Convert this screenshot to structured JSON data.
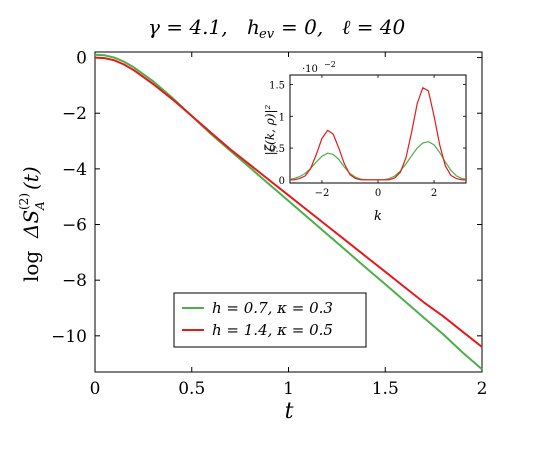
{
  "chart_data": [
    {
      "type": "line",
      "title": "γ = 4.1,    h_ev = 0,    ℓ = 40",
      "title_parts": {
        "gamma": "γ = 4.1,",
        "hev": "= 0,",
        "hev_symbol": "h",
        "hev_sub": "ev",
        "ell": "ℓ = 40"
      },
      "xlabel": "t",
      "ylabel": "log ΔS_A^(2)(t)",
      "ylabel_parts": {
        "log": "log",
        "delta": "ΔS",
        "sup": "(2)",
        "sub": "A",
        "arg": "(t)"
      },
      "xlim": [
        0,
        2
      ],
      "ylim": [
        -11.3,
        0.2
      ],
      "x_ticks": [
        "0",
        "0.5",
        "1",
        "1.5",
        "2"
      ],
      "y_ticks": [
        "0",
        "−2",
        "−4",
        "−6",
        "−8",
        "−10"
      ],
      "grid": false,
      "legend_position": "bottom-center",
      "series": [
        {
          "name": "h = 0.7,  κ = 0.3",
          "color": "#4daf4a",
          "x": [
            0,
            0.05,
            0.1,
            0.15,
            0.2,
            0.3,
            0.4,
            0.5,
            0.6,
            0.7,
            0.8,
            0.9,
            1.0,
            1.1,
            1.2,
            1.3,
            1.4,
            1.5,
            1.6,
            1.7,
            1.8,
            1.9,
            2.0
          ],
          "y": [
            0.1,
            0.08,
            0.0,
            -0.15,
            -0.35,
            -0.85,
            -1.45,
            -2.1,
            -2.75,
            -3.35,
            -3.95,
            -4.55,
            -5.15,
            -5.75,
            -6.35,
            -6.95,
            -7.55,
            -8.15,
            -8.75,
            -9.35,
            -9.95,
            -10.6,
            -11.2
          ]
        },
        {
          "name": "h = 1.4,  κ = 0.5",
          "color": "#e41a1c",
          "x": [
            0,
            0.05,
            0.1,
            0.15,
            0.2,
            0.3,
            0.4,
            0.5,
            0.6,
            0.7,
            0.8,
            0.9,
            1.0,
            1.1,
            1.2,
            1.3,
            1.4,
            1.5,
            1.6,
            1.7,
            1.8,
            1.9,
            2.0
          ],
          "y": [
            0.0,
            -0.02,
            -0.1,
            -0.25,
            -0.45,
            -0.95,
            -1.5,
            -2.1,
            -2.7,
            -3.3,
            -3.85,
            -4.4,
            -4.95,
            -5.5,
            -6.05,
            -6.6,
            -7.15,
            -7.7,
            -8.25,
            -8.8,
            -9.3,
            -9.85,
            -10.4
          ]
        }
      ]
    },
    {
      "type": "line",
      "xlabel": "k",
      "ylabel": "|ζ̃(k, ρ)|²",
      "y_multiplier": "·10",
      "y_multiplier_exp": "−2",
      "xlim": [
        -3.14,
        3.14
      ],
      "ylim": [
        -0.05,
        1.65
      ],
      "x_ticks": [
        "−2",
        "0",
        "2"
      ],
      "y_ticks": [
        "0",
        "0.5",
        "1",
        "1.5"
      ],
      "series": [
        {
          "color": "#4daf4a",
          "x": [
            -3.14,
            -3.0,
            -2.8,
            -2.6,
            -2.4,
            -2.2,
            -2.0,
            -1.8,
            -1.6,
            -1.4,
            -1.2,
            -1.0,
            -0.8,
            -0.6,
            -0.4,
            -0.2,
            0.0,
            0.2,
            0.4,
            0.6,
            0.8,
            1.0,
            1.2,
            1.4,
            1.6,
            1.8,
            2.0,
            2.2,
            2.4,
            2.6,
            2.8,
            3.0,
            3.14
          ],
          "y": [
            0.01,
            0.02,
            0.05,
            0.1,
            0.18,
            0.28,
            0.37,
            0.42,
            0.4,
            0.32,
            0.2,
            0.1,
            0.04,
            0.01,
            0.0,
            0.0,
            0.0,
            0.0,
            0.02,
            0.06,
            0.14,
            0.25,
            0.38,
            0.5,
            0.58,
            0.6,
            0.55,
            0.43,
            0.28,
            0.15,
            0.06,
            0.02,
            0.01
          ]
        },
        {
          "color": "#e41a1c",
          "x": [
            -3.14,
            -3.0,
            -2.8,
            -2.6,
            -2.4,
            -2.2,
            -2.0,
            -1.8,
            -1.6,
            -1.4,
            -1.2,
            -1.0,
            -0.8,
            -0.6,
            -0.4,
            -0.2,
            0.0,
            0.2,
            0.4,
            0.6,
            0.8,
            1.0,
            1.2,
            1.4,
            1.6,
            1.8,
            2.0,
            2.2,
            2.4,
            2.6,
            2.8,
            3.0,
            3.14
          ],
          "y": [
            0.0,
            0.0,
            0.02,
            0.06,
            0.18,
            0.4,
            0.65,
            0.78,
            0.72,
            0.5,
            0.25,
            0.08,
            0.02,
            0.0,
            0.0,
            0.0,
            0.0,
            0.0,
            0.0,
            0.03,
            0.12,
            0.35,
            0.75,
            1.2,
            1.45,
            1.4,
            1.0,
            0.55,
            0.22,
            0.07,
            0.02,
            0.0,
            0.0
          ]
        }
      ]
    }
  ]
}
